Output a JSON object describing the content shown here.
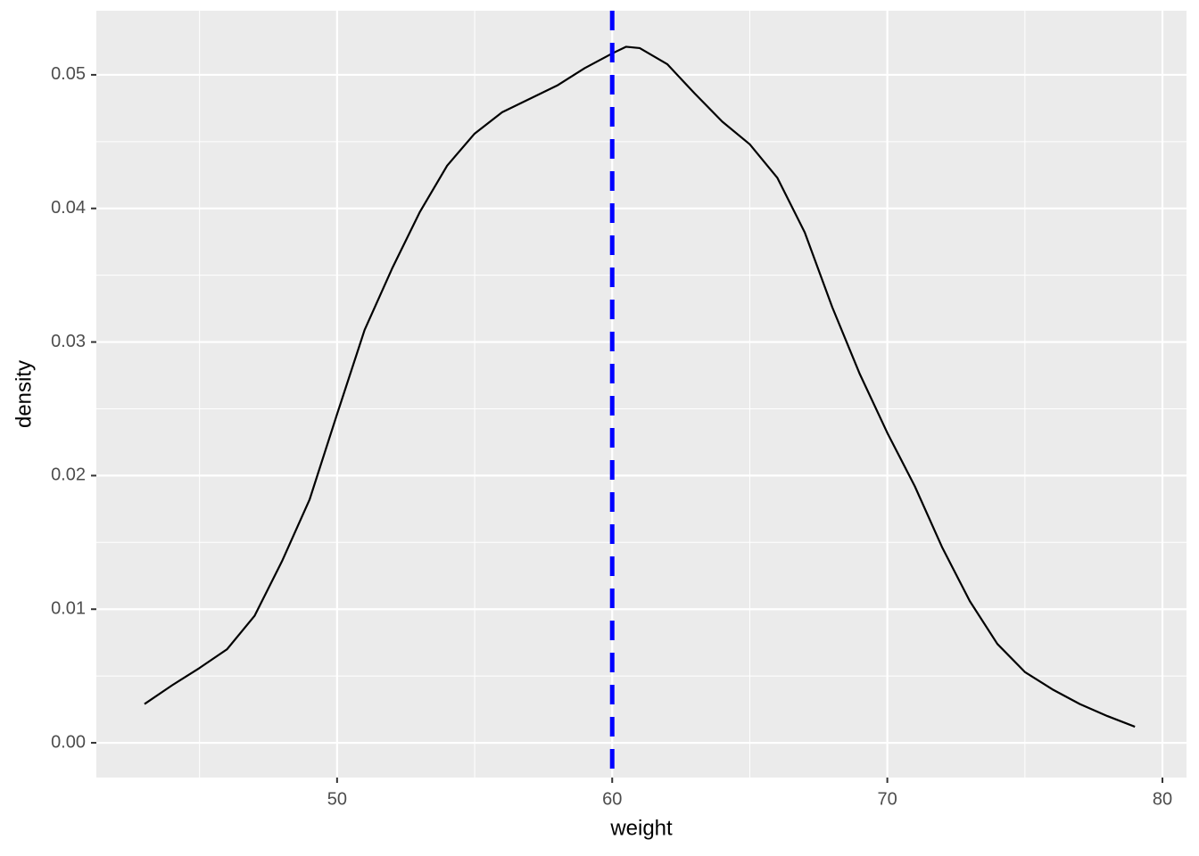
{
  "chart_data": {
    "type": "density",
    "xlabel": "weight",
    "ylabel": "density",
    "x": [
      43,
      44,
      45,
      46,
      47,
      48,
      49,
      50,
      51,
      52,
      53,
      54,
      55,
      56,
      57,
      58,
      59,
      60,
      60.5,
      61,
      62,
      63,
      64,
      65,
      66,
      67,
      68,
      69,
      70,
      71,
      72,
      73,
      74,
      75,
      76,
      77,
      78,
      79
    ],
    "series": [
      {
        "color": "#000000",
        "values": [
          0.0029,
          0.0043,
          0.0056,
          0.007,
          0.0095,
          0.0136,
          0.0182,
          0.0246,
          0.0309,
          0.0355,
          0.0397,
          0.0432,
          0.0456,
          0.0472,
          0.0482,
          0.0492,
          0.0505,
          0.0516,
          0.0521,
          0.052,
          0.0508,
          0.0486,
          0.0465,
          0.0448,
          0.0423,
          0.0382,
          0.0326,
          0.0276,
          0.0232,
          0.0192,
          0.0146,
          0.0106,
          0.0074,
          0.0053,
          0.004,
          0.0029,
          0.002,
          0.0012
        ]
      }
    ],
    "vline": {
      "x": 60,
      "color": "#0000ff",
      "dashed": true
    },
    "xlim": [
      41.25,
      80.875
    ],
    "ylim": [
      -0.0026,
      0.0548
    ],
    "xticks": [
      50,
      60,
      70,
      80
    ],
    "yticks": [
      {
        "value": 0,
        "label": "0.00"
      },
      {
        "value": 0.01,
        "label": "0.01"
      },
      {
        "value": 0.02,
        "label": "0.02"
      },
      {
        "value": 0.03,
        "label": "0.03"
      },
      {
        "value": 0.04,
        "label": "0.04"
      },
      {
        "value": 0.05,
        "label": "0.05"
      }
    ],
    "xminor": [
      45,
      55,
      65,
      75
    ],
    "yminor": [
      0.005,
      0.015,
      0.025,
      0.035,
      0.045
    ],
    "grid": true
  }
}
